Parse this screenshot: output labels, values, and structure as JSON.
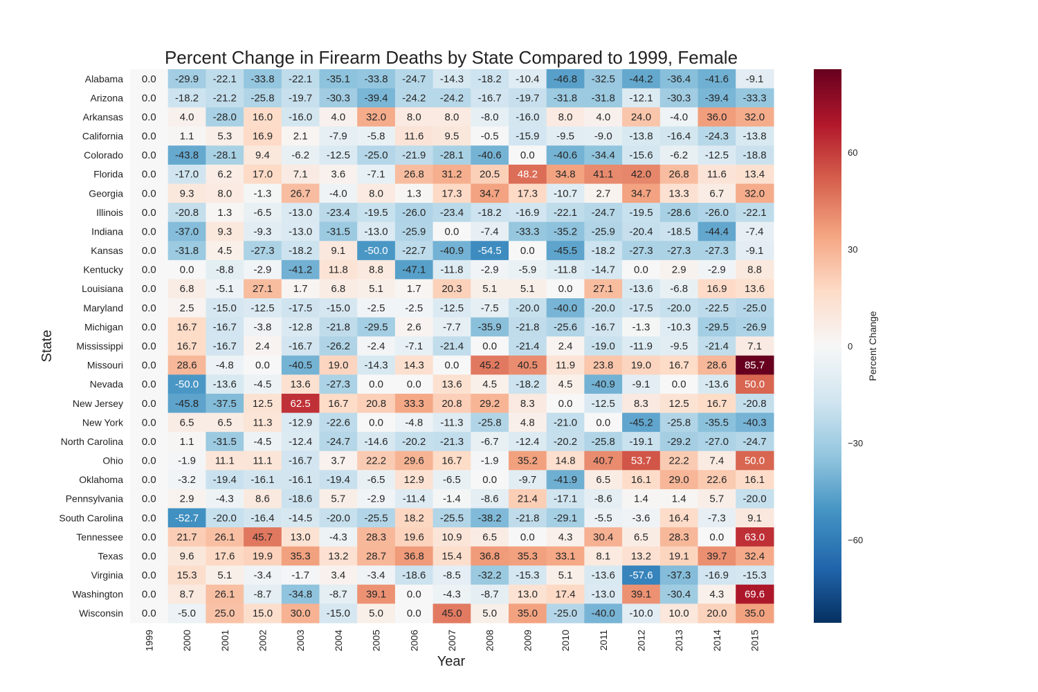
{
  "chart_data": {
    "type": "heatmap",
    "title": "Percent Change in Firearm Deaths by State Compared to 1999, Female",
    "xlabel": "Year",
    "ylabel": "State",
    "colorbar_label": "Percent Change",
    "colorbar_ticks": [
      "60",
      "30",
      "0",
      "−30",
      "−60"
    ],
    "colorbar_tick_values": [
      60,
      30,
      0,
      -30,
      -60
    ],
    "color_range": [
      -85.7,
      85.7
    ],
    "colormap": "RdBu_r",
    "colors": {
      "low": "#053061",
      "mid": "#f7f7f7",
      "high": "#67001f"
    },
    "x": [
      "1999",
      "2000",
      "2001",
      "2002",
      "2003",
      "2004",
      "2005",
      "2006",
      "2007",
      "2008",
      "2009",
      "2010",
      "2011",
      "2012",
      "2013",
      "2014",
      "2015"
    ],
    "y": [
      "Alabama",
      "Arizona",
      "Arkansas",
      "California",
      "Colorado",
      "Florida",
      "Georgia",
      "Illinois",
      "Indiana",
      "Kansas",
      "Kentucky",
      "Louisiana",
      "Maryland",
      "Michigan",
      "Mississippi",
      "Missouri",
      "Nevada",
      "New Jersey",
      "New York",
      "North Carolina",
      "Ohio",
      "Oklahoma",
      "Pennsylvania",
      "South Carolina",
      "Tennessee",
      "Texas",
      "Virginia",
      "Washington",
      "Wisconsin"
    ],
    "labels": [
      [
        "0.0",
        "-29.9",
        "-22.1",
        "-33.8",
        "-22.1",
        "-35.1",
        "-33.8",
        "-24.7",
        "-14.3",
        "-18.2",
        "-10.4",
        "-46.8",
        "-32.5",
        "-44.2",
        "-36.4",
        "-41.6",
        "-9.1"
      ],
      [
        "0.0",
        "-18.2",
        "-21.2",
        "-25.8",
        "-19.7",
        "-30.3",
        "-39.4",
        "-24.2",
        "-24.2",
        "-16.7",
        "-19.7",
        "-31.8",
        "-31.8",
        "-12.1",
        "-30.3",
        "-39.4",
        "-33.3"
      ],
      [
        "0.0",
        "4.0",
        "-28.0",
        "16.0",
        "-16.0",
        "4.0",
        "32.0",
        "8.0",
        "8.0",
        "-8.0",
        "-16.0",
        "8.0",
        "4.0",
        "24.0",
        "-4.0",
        "36.0",
        "32.0"
      ],
      [
        "0.0",
        "1.1",
        "5.3",
        "16.9",
        "2.1",
        "-7.9",
        "-5.8",
        "11.6",
        "9.5",
        "-0.5",
        "-15.9",
        "-9.5",
        "-9.0",
        "-13.8",
        "-16.4",
        "-24.3",
        "-13.8"
      ],
      [
        "0.0",
        "-43.8",
        "-28.1",
        "9.4",
        "-6.2",
        "-12.5",
        "-25.0",
        "-21.9",
        "-28.1",
        "-40.6",
        "0.0",
        "-40.6",
        "-34.4",
        "-15.6",
        "-6.2",
        "-12.5",
        "-18.8"
      ],
      [
        "0.0",
        "-17.0",
        "6.2",
        "17.0",
        "7.1",
        "3.6",
        "-7.1",
        "26.8",
        "31.2",
        "20.5",
        "48.2",
        "34.8",
        "41.1",
        "42.0",
        "26.8",
        "11.6",
        "13.4"
      ],
      [
        "0.0",
        "9.3",
        "8.0",
        "-1.3",
        "26.7",
        "-4.0",
        "8.0",
        "1.3",
        "17.3",
        "34.7",
        "17.3",
        "-10.7",
        "2.7",
        "34.7",
        "13.3",
        "6.7",
        "32.0"
      ],
      [
        "0.0",
        "-20.8",
        "1.3",
        "-6.5",
        "-13.0",
        "-23.4",
        "-19.5",
        "-26.0",
        "-23.4",
        "-18.2",
        "-16.9",
        "-22.1",
        "-24.7",
        "-19.5",
        "-28.6",
        "-26.0",
        "-22.1"
      ],
      [
        "0.0",
        "-37.0",
        "9.3",
        "-9.3",
        "-13.0",
        "-31.5",
        "-13.0",
        "-25.9",
        "0.0",
        "-7.4",
        "-33.3",
        "-35.2",
        "-25.9",
        "-20.4",
        "-18.5",
        "-44.4",
        "-7.4"
      ],
      [
        "0.0",
        "-31.8",
        "4.5",
        "-27.3",
        "-18.2",
        "9.1",
        "-50.0",
        "-22.7",
        "-40.9",
        "-54.5",
        "0.0",
        "-45.5",
        "-18.2",
        "-27.3",
        "-27.3",
        "-27.3",
        "-9.1"
      ],
      [
        "0.0",
        "0.0",
        "-8.8",
        "-2.9",
        "-41.2",
        "11.8",
        "8.8",
        "-47.1",
        "-11.8",
        "-2.9",
        "-5.9",
        "-11.8",
        "-14.7",
        "0.0",
        "2.9",
        "-2.9",
        "8.8"
      ],
      [
        "0.0",
        "6.8",
        "-5.1",
        "27.1",
        "1.7",
        "6.8",
        "5.1",
        "1.7",
        "20.3",
        "5.1",
        "5.1",
        "0.0",
        "27.1",
        "-13.6",
        "-6.8",
        "16.9",
        "13.6"
      ],
      [
        "0.0",
        "2.5",
        "-15.0",
        "-12.5",
        "-17.5",
        "-15.0",
        "-2.5",
        "-2.5",
        "-12.5",
        "-7.5",
        "-20.0",
        "-40.0",
        "-20.0",
        "-17.5",
        "-20.0",
        "-22.5",
        "-25.0"
      ],
      [
        "0.0",
        "16.7",
        "-16.7",
        "-3.8",
        "-12.8",
        "-21.8",
        "-29.5",
        "2.6",
        "-7.7",
        "-35.9",
        "-21.8",
        "-25.6",
        "-16.7",
        "-1.3",
        "-10.3",
        "-29.5",
        "-26.9"
      ],
      [
        "0.0",
        "16.7",
        "-16.7",
        "2.4",
        "-16.7",
        "-26.2",
        "-2.4",
        "-7.1",
        "-21.4",
        "0.0",
        "-21.4",
        "2.4",
        "-19.0",
        "-11.9",
        "-9.5",
        "-21.4",
        "7.1"
      ],
      [
        "0.0",
        "28.6",
        "-4.8",
        "0.0",
        "-40.5",
        "19.0",
        "-14.3",
        "14.3",
        "0.0",
        "45.2",
        "40.5",
        "11.9",
        "23.8",
        "19.0",
        "16.7",
        "28.6",
        "85.7"
      ],
      [
        "0.0",
        "-50.0",
        "-13.6",
        "-4.5",
        "13.6",
        "-27.3",
        "0.0",
        "0.0",
        "13.6",
        "4.5",
        "-18.2",
        "4.5",
        "-40.9",
        "-9.1",
        "0.0",
        "-13.6",
        "50.0"
      ],
      [
        "0.0",
        "-45.8",
        "-37.5",
        "12.5",
        "62.5",
        "16.7",
        "20.8",
        "33.3",
        "20.8",
        "29.2",
        "8.3",
        "0.0",
        "-12.5",
        "8.3",
        "12.5",
        "16.7",
        "-20.8"
      ],
      [
        "0.0",
        "6.5",
        "6.5",
        "11.3",
        "-12.9",
        "-22.6",
        "0.0",
        "-4.8",
        "-11.3",
        "-25.8",
        "4.8",
        "-21.0",
        "0.0",
        "-45.2",
        "-25.8",
        "-35.5",
        "-40.3"
      ],
      [
        "0.0",
        "1.1",
        "-31.5",
        "-4.5",
        "-12.4",
        "-24.7",
        "-14.6",
        "-20.2",
        "-21.3",
        "-6.7",
        "-12.4",
        "-20.2",
        "-25.8",
        "-19.1",
        "-29.2",
        "-27.0",
        "-24.7"
      ],
      [
        "0.0",
        "-1.9",
        "11.1",
        "11.1",
        "-16.7",
        "3.7",
        "22.2",
        "29.6",
        "16.7",
        "-1.9",
        "35.2",
        "14.8",
        "40.7",
        "53.7",
        "22.2",
        "7.4",
        "50.0"
      ],
      [
        "0.0",
        "-3.2",
        "-19.4",
        "-16.1",
        "-16.1",
        "-19.4",
        "-6.5",
        "12.9",
        "-6.5",
        "0.0",
        "-9.7",
        "-41.9",
        "6.5",
        "16.1",
        "29.0",
        "22.6",
        "16.1"
      ],
      [
        "0.0",
        "2.9",
        "-4.3",
        "8.6",
        "-18.6",
        "5.7",
        "-2.9",
        "-11.4",
        "-1.4",
        "-8.6",
        "21.4",
        "-17.1",
        "-8.6",
        "1.4",
        "1.4",
        "5.7",
        "-20.0"
      ],
      [
        "0.0",
        "-52.7",
        "-20.0",
        "-16.4",
        "-14.5",
        "-20.0",
        "-25.5",
        "18.2",
        "-25.5",
        "-38.2",
        "-21.8",
        "-29.1",
        "-5.5",
        "-3.6",
        "16.4",
        "-7.3",
        "9.1"
      ],
      [
        "0.0",
        "21.7",
        "26.1",
        "45.7",
        "13.0",
        "-4.3",
        "28.3",
        "19.6",
        "10.9",
        "6.5",
        "0.0",
        "4.3",
        "30.4",
        "6.5",
        "28.3",
        "0.0",
        "63.0"
      ],
      [
        "0.0",
        "9.6",
        "17.6",
        "19.9",
        "35.3",
        "13.2",
        "28.7",
        "36.8",
        "15.4",
        "36.8",
        "35.3",
        "33.1",
        "8.1",
        "13.2",
        "19.1",
        "39.7",
        "32.4"
      ],
      [
        "0.0",
        "15.3",
        "5.1",
        "-3.4",
        "-1.7",
        "3.4",
        "-3.4",
        "-18.6",
        "-8.5",
        "-32.2",
        "-15.3",
        "5.1",
        "-13.6",
        "-57.6",
        "-37.3",
        "-16.9",
        "-15.3"
      ],
      [
        "0.0",
        "8.7",
        "26.1",
        "-8.7",
        "-34.8",
        "-8.7",
        "39.1",
        "0.0",
        "-4.3",
        "-8.7",
        "13.0",
        "17.4",
        "-13.0",
        "39.1",
        "-30.4",
        "4.3",
        "69.6"
      ],
      [
        "0.0",
        "-5.0",
        "25.0",
        "15.0",
        "30.0",
        "-15.0",
        "5.0",
        "0.0",
        "45.0",
        "5.0",
        "35.0",
        "-25.0",
        "-40.0",
        "-10.0",
        "10.0",
        "20.0",
        "35.0"
      ]
    ]
  }
}
